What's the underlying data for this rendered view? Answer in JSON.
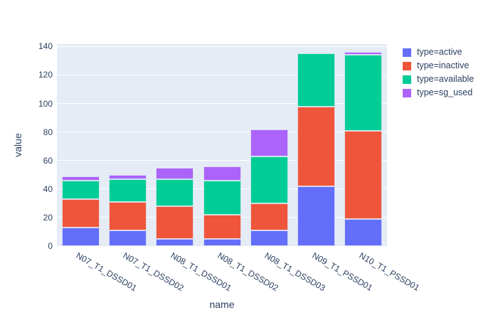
{
  "chart_data": {
    "type": "bar",
    "stacked": true,
    "title": "",
    "xlabel": "name",
    "ylabel": "value",
    "categories": [
      "N07_T1_DSSD01",
      "N07_T1_DSSD02",
      "N08_T1_DSSD01",
      "N08_T1_DSSD02",
      "N08_T1_DSSD03",
      "N09_T1_PSSD01",
      "N10_T1_PSSD01"
    ],
    "series": [
      {
        "name": "type=active",
        "color": "#636EFA",
        "values": [
          13,
          11,
          5,
          5,
          11,
          42,
          19
        ]
      },
      {
        "name": "type=inactive",
        "color": "#EF553B",
        "values": [
          20,
          20,
          23,
          17,
          19,
          56,
          62
        ]
      },
      {
        "name": "type=available",
        "color": "#00CC96",
        "values": [
          13,
          16,
          19,
          24,
          33,
          37,
          53
        ]
      },
      {
        "name": "type=sg_used",
        "color": "#AB63FA",
        "values": [
          3,
          3,
          8,
          10,
          19,
          0,
          2
        ]
      }
    ],
    "totals": [
      49,
      50,
      55,
      56,
      82,
      135,
      136
    ],
    "yticks": [
      0,
      20,
      40,
      60,
      80,
      100,
      120,
      140
    ],
    "ylim": [
      0,
      141.6
    ],
    "grid": true,
    "legend_position": "top-right",
    "colors": {
      "plot_bg": "#E5ECF6",
      "grid": "#FFFFFF",
      "text": "#2a3f5f",
      "paper_bg": "#FFFFFF"
    }
  }
}
